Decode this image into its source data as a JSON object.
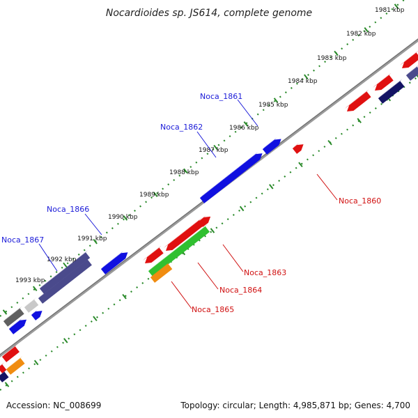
{
  "title": "Nocardioides sp. JS614, complete genome",
  "accession": "Accession: NC_008699",
  "summary": "Topology: circular; Length: 4,985,871 bp; Genes: 4,700",
  "ruler_labels": [
    "1981 kbp",
    "1982 kbp",
    "1983 kbp",
    "1984 kbp",
    "1985 kbp",
    "1986 kbp",
    "1987 kbp",
    "1988 kbp",
    "1989 kbp",
    "1990 kbp",
    "1991 kbp",
    "1992 kbp",
    "1993 kbp"
  ],
  "gene_labels": {
    "noca_1861": "Noca_1861",
    "noca_1862": "Noca_1862",
    "noca_1866": "Noca_1866",
    "noca_1867": "Noca_1867",
    "noca_1860": "Noca_1860",
    "noca_1863": "Noca_1863",
    "noca_1864": "Noca_1864",
    "noca_1865": "Noca_1865"
  },
  "colors": {
    "blue": "#1010e0",
    "red": "#e01010",
    "green": "#30c030",
    "orange": "#f08c10",
    "slate": "#4a4a8c",
    "gray": "#606060",
    "lightgray": "#c8c8c8",
    "navy": "#141464",
    "ruler": "#2a8a2a",
    "backbone": "#8a8a8a"
  }
}
